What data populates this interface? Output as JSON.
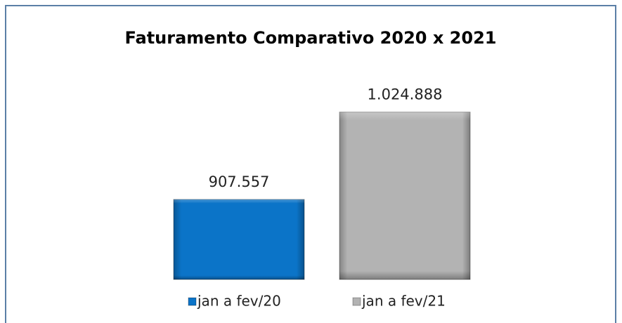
{
  "chart_data": {
    "type": "bar",
    "title": "Faturamento Comparativo 2020 x 2021",
    "series": [
      {
        "name": "jan a fev/20",
        "color": "#0b74c8",
        "values": [
          907557
        ],
        "value_labels": [
          "907.557"
        ]
      },
      {
        "name": "jan a fev/21",
        "color": "#b3b3b3",
        "values": [
          1024888
        ],
        "value_labels": [
          "1.024.888"
        ]
      }
    ],
    "ylim": [
      800000,
      1050000
    ],
    "legend": "bottom"
  }
}
